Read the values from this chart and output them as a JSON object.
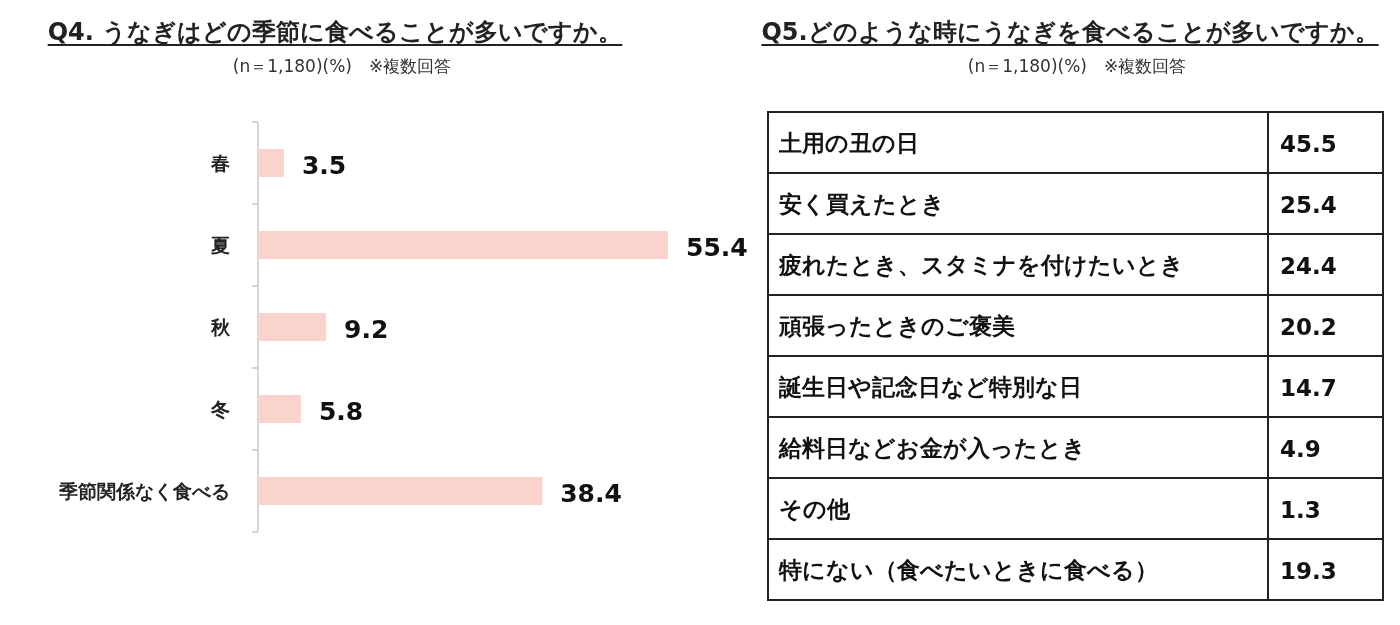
{
  "chart_data": [
    {
      "type": "bar",
      "orientation": "horizontal",
      "title": "Q4. うなぎはどの季節に食べることが多いですか。",
      "subtitle": "(n＝1,180)(%)　※複数回答",
      "categories": [
        "春",
        "夏",
        "秋",
        "冬",
        "季節関係なく食べる"
      ],
      "values": [
        3.5,
        55.4,
        9.2,
        5.8,
        38.4
      ],
      "color": "#fad3cc",
      "data_labels": true
    },
    {
      "type": "other",
      "title": "Q5.どのような時にうなぎを食べることが多いですか。",
      "subtitle": "(n＝1,180)(%)　※複数回答",
      "categories": [
        "土用の丑の日",
        "安く買えたとき",
        "疲れたとき、スタミナを付けたいとき",
        "頑張ったときのご褒美",
        "誕生日や記念日など特別な日",
        "給料日などお金が入ったとき",
        "その他",
        "特にない（食べたいときに食べる）"
      ],
      "values": [
        45.5,
        25.4,
        24.4,
        20.2,
        14.7,
        4.9,
        1.3,
        19.3
      ],
      "data_labels": true
    }
  ]
}
